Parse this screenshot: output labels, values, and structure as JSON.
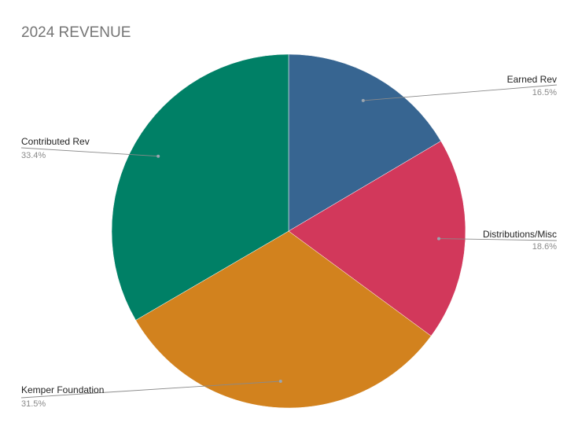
{
  "chart_data": {
    "type": "pie",
    "title": "2024 REVENUE",
    "slices": [
      {
        "label": "Earned Rev",
        "value": 16.5,
        "display": "16.5%",
        "color": "#376591"
      },
      {
        "label": "Distributions/Misc",
        "value": 18.6,
        "display": "18.6%",
        "color": "#d2385b"
      },
      {
        "label": "Kemper Foundation",
        "value": 31.5,
        "display": "31.5%",
        "color": "#d2821e"
      },
      {
        "label": "Contributed Rev",
        "value": 33.4,
        "display": "33.4%",
        "color": "#008066"
      }
    ],
    "start_angle": "12 o'clock",
    "direction": "clockwise",
    "legend": "none"
  }
}
